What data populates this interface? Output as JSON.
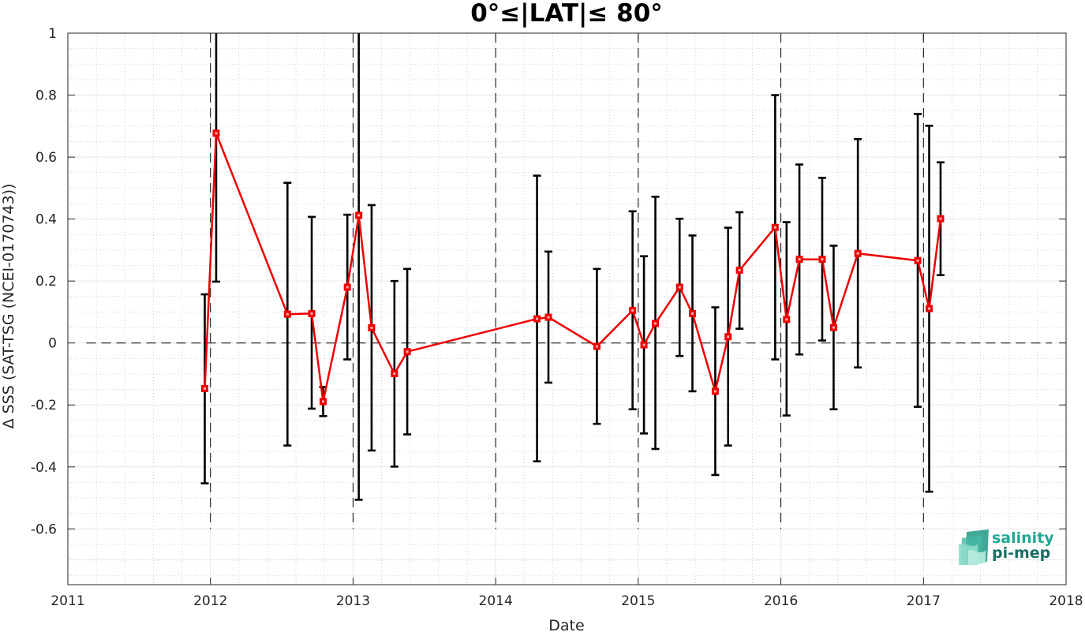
{
  "logo": {
    "line1": "salinity",
    "line2": "pi-mep",
    "color_top": "#1fa892",
    "color_bottom": "#1b6f66"
  },
  "chart_data": {
    "type": "line",
    "title": "0°≤|LAT|≤ 80°",
    "xlabel": "Date",
    "ylabel": "Δ SSS (SAT-TSG (NCEI-0170743))",
    "xlim": [
      2011,
      2018
    ],
    "ylim": [
      -0.78,
      1.0
    ],
    "xticks": [
      "2011",
      "2012",
      "2013",
      "2014",
      "2015",
      "2016",
      "2017",
      "2018"
    ],
    "yticks": [
      {
        "v": 1,
        "label": "1"
      },
      {
        "v": 0.8,
        "label": "0.8"
      },
      {
        "v": 0.6,
        "label": "0.6"
      },
      {
        "v": 0.4,
        "label": "0.4"
      },
      {
        "v": 0.2,
        "label": "0.2"
      },
      {
        "v": 0,
        "label": "0"
      },
      {
        "v": -0.2,
        "label": "-0.2"
      },
      {
        "v": -0.4,
        "label": "-0.4"
      },
      {
        "v": -0.6,
        "label": "-0.6"
      }
    ],
    "grid": true,
    "minor_grid": true,
    "year_markers": [
      2012,
      2013,
      2014,
      2015,
      2016,
      2017
    ],
    "zero_line": 0,
    "series": [
      {
        "color": "#ee0000",
        "errorbar_color": "#000000",
        "marker": "square",
        "points": [
          {
            "x": 2011.96,
            "y": -0.147,
            "lo": -0.453,
            "hi": 0.157
          },
          {
            "x": 2012.04,
            "y": 0.677,
            "lo": 0.198,
            "hi": 1.0
          },
          {
            "x": 2012.54,
            "y": 0.093,
            "lo": -0.331,
            "hi": 0.517
          },
          {
            "x": 2012.71,
            "y": 0.095,
            "lo": -0.212,
            "hi": 0.407
          },
          {
            "x": 2012.79,
            "y": -0.189,
            "lo": -0.236,
            "hi": -0.142
          },
          {
            "x": 2012.96,
            "y": 0.18,
            "lo": -0.053,
            "hi": 0.414
          },
          {
            "x": 2013.04,
            "y": 0.412,
            "lo": -0.506,
            "hi": 1.0
          },
          {
            "x": 2013.13,
            "y": 0.049,
            "lo": -0.347,
            "hi": 0.445
          },
          {
            "x": 2013.29,
            "y": -0.099,
            "lo": -0.399,
            "hi": 0.2
          },
          {
            "x": 2013.38,
            "y": -0.028,
            "lo": -0.295,
            "hi": 0.239
          },
          {
            "x": 2014.29,
            "y": 0.078,
            "lo": -0.382,
            "hi": 0.54
          },
          {
            "x": 2014.37,
            "y": 0.083,
            "lo": -0.128,
            "hi": 0.295
          },
          {
            "x": 2014.71,
            "y": -0.011,
            "lo": -0.261,
            "hi": 0.239
          },
          {
            "x": 2014.96,
            "y": 0.105,
            "lo": -0.214,
            "hi": 0.425
          },
          {
            "x": 2015.04,
            "y": -0.006,
            "lo": -0.292,
            "hi": 0.28
          },
          {
            "x": 2015.12,
            "y": 0.063,
            "lo": -0.342,
            "hi": 0.472
          },
          {
            "x": 2015.29,
            "y": 0.18,
            "lo": -0.042,
            "hi": 0.401
          },
          {
            "x": 2015.38,
            "y": 0.095,
            "lo": -0.156,
            "hi": 0.347
          },
          {
            "x": 2015.54,
            "y": -0.156,
            "lo": -0.426,
            "hi": 0.115
          },
          {
            "x": 2015.63,
            "y": 0.02,
            "lo": -0.331,
            "hi": 0.372
          },
          {
            "x": 2015.71,
            "y": 0.235,
            "lo": 0.046,
            "hi": 0.422
          },
          {
            "x": 2015.96,
            "y": 0.373,
            "lo": -0.053,
            "hi": 0.8
          },
          {
            "x": 2016.04,
            "y": 0.076,
            "lo": -0.234,
            "hi": 0.39
          },
          {
            "x": 2016.13,
            "y": 0.27,
            "lo": -0.037,
            "hi": 0.576
          },
          {
            "x": 2016.29,
            "y": 0.27,
            "lo": 0.008,
            "hi": 0.533
          },
          {
            "x": 2016.37,
            "y": 0.05,
            "lo": -0.214,
            "hi": 0.314
          },
          {
            "x": 2016.54,
            "y": 0.289,
            "lo": -0.079,
            "hi": 0.658
          },
          {
            "x": 2016.96,
            "y": 0.266,
            "lo": -0.206,
            "hi": 0.739
          },
          {
            "x": 2017.04,
            "y": 0.111,
            "lo": -0.48,
            "hi": 0.701
          },
          {
            "x": 2017.12,
            "y": 0.401,
            "lo": 0.219,
            "hi": 0.583
          }
        ]
      }
    ]
  }
}
